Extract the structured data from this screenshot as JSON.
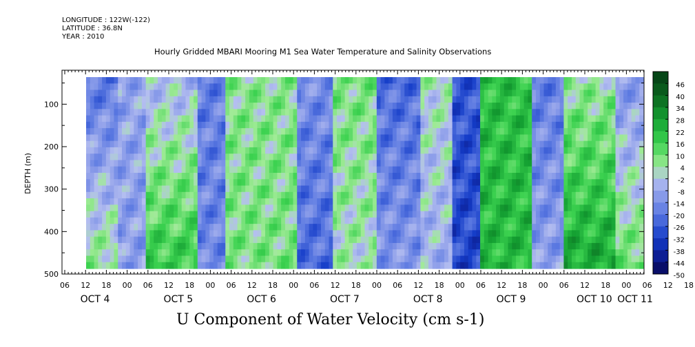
{
  "header": {
    "longitude": "LONGITUDE : 122W(-122)",
    "latitude": "LATITUDE : 36.8N",
    "year": "YEAR : 2010"
  },
  "chart_data": {
    "type": "heatmap",
    "title": "Hourly Gridded MBARI Mooring M1 Sea Water Temperature and Salinity Observations",
    "variable_title": "U Component of Water Velocity (cm s-1)",
    "ylabel": "DEPTH (m)",
    "ylim": [
      500,
      20
    ],
    "y_ticks": [
      100,
      200,
      300,
      400,
      500
    ],
    "x_hour_ticks": [
      "06",
      "12",
      "18",
      "00",
      "06",
      "12",
      "18",
      "00",
      "06",
      "12",
      "18",
      "00",
      "06",
      "12",
      "18",
      "00",
      "06",
      "12",
      "18",
      "00",
      "06",
      "12",
      "18",
      "00",
      "06",
      "12",
      "18",
      "00",
      "06",
      "12",
      "18",
      "00",
      "06",
      "12",
      "18",
      "00"
    ],
    "x_day_labels": [
      "OCT 4",
      "OCT 5",
      "OCT 6",
      "OCT 7",
      "OCT 8",
      "OCT 9",
      "OCT 10",
      "OCT 11"
    ],
    "colorbar": {
      "levels": [
        46,
        40,
        34,
        28,
        22,
        16,
        10,
        4,
        -2,
        -8,
        -14,
        -20,
        -26,
        -32,
        -38,
        -44,
        -50
      ],
      "min": -50,
      "max": 52
    },
    "value_bands_by_time_fraction": [
      {
        "t": [
          0.0,
          0.06
        ],
        "surface": -20,
        "deep": 6
      },
      {
        "t": [
          0.06,
          0.11
        ],
        "surface": -8,
        "deep": -10
      },
      {
        "t": [
          0.11,
          0.2
        ],
        "surface": -4,
        "deep": 18
      },
      {
        "t": [
          0.2,
          0.25
        ],
        "surface": -18,
        "deep": -16
      },
      {
        "t": [
          0.25,
          0.38
        ],
        "surface": 6,
        "deep": 8
      },
      {
        "t": [
          0.38,
          0.44
        ],
        "surface": -14,
        "deep": -22
      },
      {
        "t": [
          0.44,
          0.52
        ],
        "surface": 8,
        "deep": 2
      },
      {
        "t": [
          0.52,
          0.6
        ],
        "surface": -22,
        "deep": -12
      },
      {
        "t": [
          0.6,
          0.66
        ],
        "surface": 2,
        "deep": -6
      },
      {
        "t": [
          0.66,
          0.71
        ],
        "surface": -26,
        "deep": -30
      },
      {
        "t": [
          0.71,
          0.8
        ],
        "surface": 20,
        "deep": 22
      },
      {
        "t": [
          0.8,
          0.86
        ],
        "surface": -18,
        "deep": -10
      },
      {
        "t": [
          0.86,
          0.95
        ],
        "surface": 4,
        "deep": 26
      },
      {
        "t": [
          0.95,
          1.0
        ],
        "surface": -12,
        "deep": 10
      }
    ]
  }
}
